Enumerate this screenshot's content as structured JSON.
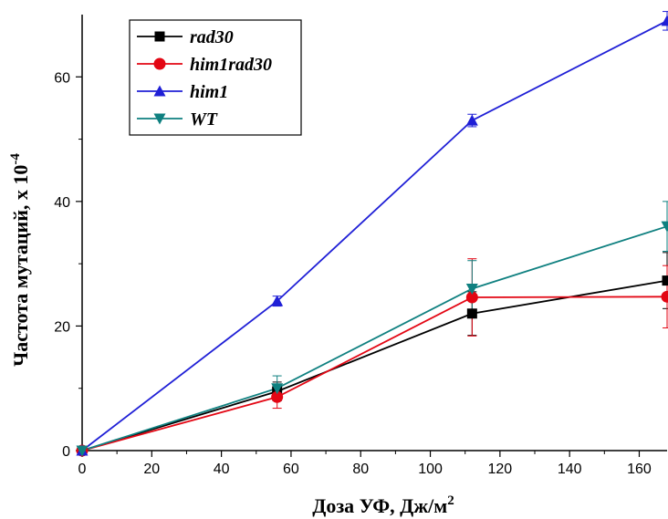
{
  "chart_data": {
    "type": "line",
    "x": [
      0,
      56,
      112,
      168
    ],
    "xlabel": "Доза УФ, Дж/м",
    "xlabel_sup": "2",
    "ylabel": "Частота мутаций, х 10",
    "ylabel_sup": "-4",
    "xlim": [
      0,
      168
    ],
    "ylim": [
      0,
      70
    ],
    "xticks": [
      0,
      20,
      40,
      60,
      80,
      100,
      120,
      140,
      160
    ],
    "yticks": [
      0,
      20,
      40,
      60
    ],
    "grid": false,
    "legend_position": "top-left",
    "series": [
      {
        "name": "rad30",
        "color": "#000000",
        "marker": "square",
        "values": [
          0,
          9.5,
          22,
          27.3
        ],
        "errors": [
          0,
          1.5,
          3.5,
          4.5
        ]
      },
      {
        "name": "him1rad30",
        "color": "#e30613",
        "marker": "circle",
        "values": [
          0,
          8.6,
          24.6,
          24.7
        ],
        "errors": [
          0,
          1.8,
          6.2,
          5.0
        ]
      },
      {
        "name": "him1",
        "color": "#1f1fd6",
        "marker": "triangle-up",
        "values": [
          0,
          24,
          53,
          69
        ],
        "errors": [
          0,
          0.8,
          1.0,
          1.5
        ]
      },
      {
        "name": "WT",
        "color": "#0f8080",
        "marker": "triangle-down",
        "values": [
          0,
          10,
          26,
          36
        ],
        "errors": [
          0,
          2.0,
          4.5,
          4.0
        ]
      }
    ]
  }
}
